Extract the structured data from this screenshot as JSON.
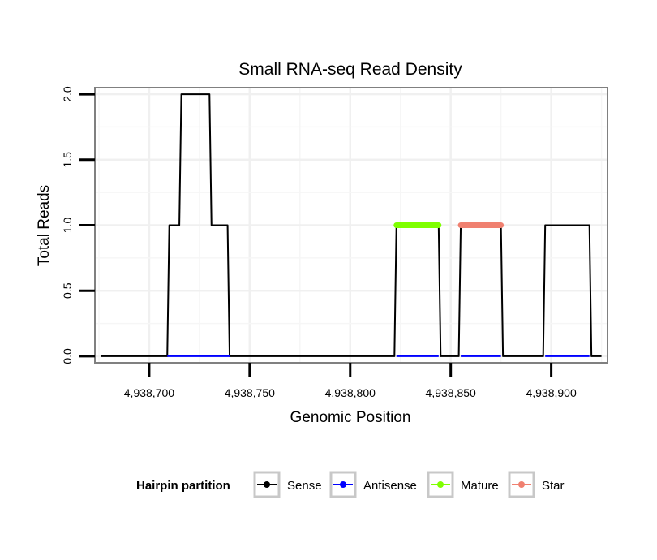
{
  "chart_data": {
    "type": "line",
    "title": "Small RNA-seq Read Density",
    "xlabel": "Genomic Position",
    "ylabel": "Total Reads",
    "xlim": [
      4938673,
      4938928
    ],
    "ylim": [
      -0.05,
      2.05
    ],
    "x_ticks": [
      4938700,
      4938750,
      4938800,
      4938850,
      4938900
    ],
    "x_tick_labels": [
      "4,938,700",
      "4,938,750",
      "4,938,800",
      "4,938,850",
      "4,938,900"
    ],
    "y_ticks": [
      0,
      0.5,
      1,
      1.5,
      2
    ],
    "y_tick_labels": [
      "0.0",
      "0.5",
      "1.0",
      "1.5",
      "2.0"
    ],
    "grid": true,
    "legend": {
      "title": "Hairpin partition",
      "position": "bottom",
      "entries": [
        "Sense",
        "Antisense",
        "Mature",
        "Star"
      ]
    },
    "series": [
      {
        "name": "Sense",
        "color": "#000000",
        "x": [
          4938676,
          4938709,
          4938710,
          4938715,
          4938716,
          4938730,
          4938731,
          4938739,
          4938740,
          4938822,
          4938823,
          4938844,
          4938845,
          4938854,
          4938855,
          4938875,
          4938876,
          4938896,
          4938897,
          4938919,
          4938920,
          4938925
        ],
        "y": [
          0,
          0,
          1,
          1,
          2,
          2,
          1,
          1,
          0,
          0,
          1,
          1,
          0,
          0,
          1,
          1,
          0,
          0,
          1,
          1,
          0,
          0
        ]
      },
      {
        "name": "Antisense",
        "color": "#0000ff",
        "x": [
          4938709,
          4938740,
          4938823,
          4938844,
          4938855,
          4938875,
          4938897,
          4938919
        ],
        "y": [
          0,
          0,
          0,
          0,
          0,
          0,
          0,
          0
        ]
      },
      {
        "name": "Mature",
        "color": "#7fff00",
        "x": [
          4938823,
          4938844
        ],
        "y": [
          1,
          1
        ]
      },
      {
        "name": "Star",
        "color": "#f08070",
        "x": [
          4938855,
          4938875
        ],
        "y": [
          1,
          1
        ]
      }
    ]
  }
}
